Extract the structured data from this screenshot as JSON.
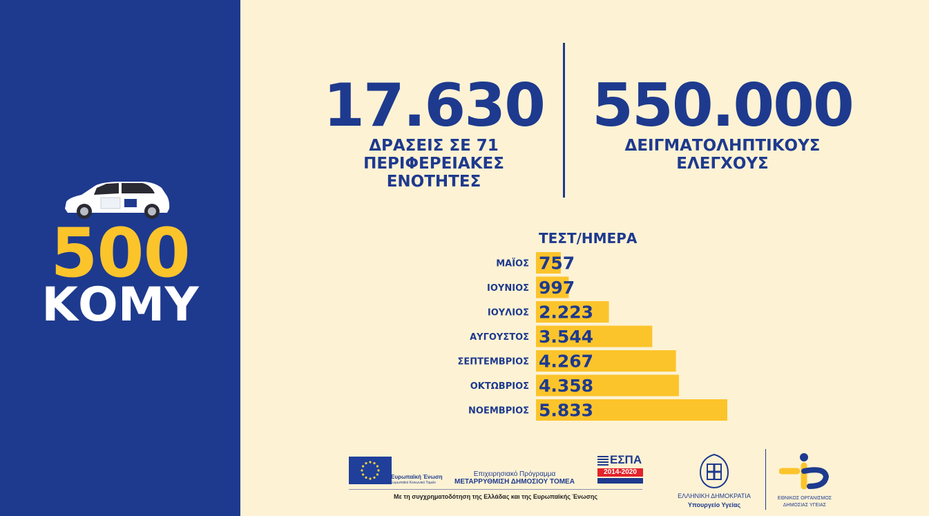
{
  "left": {
    "count": "500",
    "label": "ΚΟΜΥ"
  },
  "stats": [
    {
      "value": "17.630",
      "label": "ΔΡΑΣΕΙΣ ΣΕ 71\nΠΕΡΙΦΕΡΕΙΑΚΕΣ\nΕΝΟΤΗΤΕΣ"
    },
    {
      "value": "550.000",
      "label": "ΔΕΙΓΜΑΤΟΛΗΠΤΙΚΟΥΣ\nΕΛΕΓΧΟΥΣ"
    }
  ],
  "chart_data": {
    "type": "bar",
    "orientation": "horizontal",
    "title": "ΤΕΣΤ/ΗΜΕΡΑ",
    "categories": [
      "ΜΑΪΟΣ",
      "ΙΟΥΝΙΟΣ",
      "ΙΟΥΛΙΟΣ",
      "ΑΥΓΟΥΣΤΟΣ",
      "ΣΕΠΤΕΜΒΡΙΟΣ",
      "ΟΚΤΩΒΡΙΟΣ",
      "ΝΟΕΜΒΡΙΟΣ"
    ],
    "values": [
      757,
      997,
      2223,
      3544,
      4267,
      4358,
      5833
    ],
    "value_labels": [
      "757",
      "997",
      "2.223",
      "3.544",
      "4.267",
      "4.358",
      "5.833"
    ],
    "grid": false,
    "colors": {
      "bar": "#fcc42b",
      "text": "#1e3a8e"
    }
  },
  "footer": {
    "eu_label": "Ευρωπαϊκή Ένωση",
    "eu_sublabel": "Ευρωπαϊκό Κοινωνικό Ταμείο",
    "program_line1": "Επιχειρησιακό Πρόγραμμα",
    "program_line2": "ΜΕΤΑΡΡΥΘΜΙΣΗ ΔΗΜΟΣΙΟΥ ΤΟΜΕΑ",
    "espa_title": "ΕΣΠΑ",
    "espa_years": "2014-2020",
    "cofinance": "Με τη συγχρηματοδότηση της Ελλάδας και της Ευρωπαϊκής Ένωσης",
    "republic": "ΕΛΛΗΝΙΚΗ ΔΗΜΟΚΡΑΤΙΑ",
    "ministry": "Υπουργείο Υγείας",
    "eody_line1": "ΕΘΝΙΚΟΣ ΟΡΓΑΝΙΣΜΟΣ",
    "eody_line2": "ΔΗΜΟΣΙΑΣ ΥΓΕΙΑΣ"
  },
  "colors": {
    "navy": "#1e3a8e",
    "yellow": "#fcc42b",
    "cream": "#fdf2d4"
  }
}
